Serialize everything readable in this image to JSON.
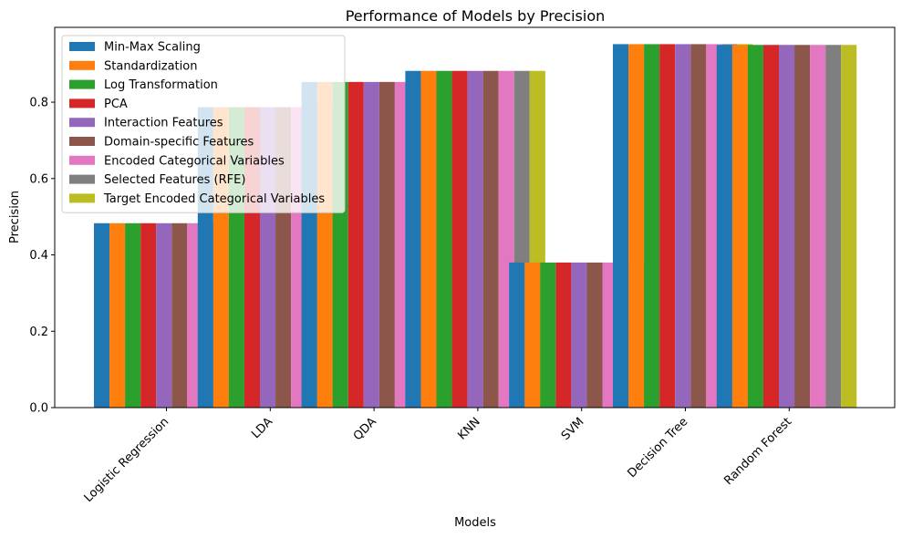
{
  "chart_data": {
    "type": "bar",
    "title": "Performance of Models by Precision",
    "xlabel": "Models",
    "ylabel": "Precision",
    "ylim": [
      0,
      0.996
    ],
    "yticks": [
      0.0,
      0.2,
      0.4,
      0.6,
      0.8
    ],
    "ytick_labels": [
      "0.0",
      "0.2",
      "0.4",
      "0.6",
      "0.8"
    ],
    "categories": [
      "Logistic Regression",
      "LDA",
      "QDA",
      "KNN",
      "SVM",
      "Decision Tree",
      "Random Forest"
    ],
    "legend_position": "upper-left",
    "grid": false,
    "series": [
      {
        "name": "Min-Max Scaling",
        "color": "#1f77b4",
        "values": [
          0.483,
          0.787,
          0.853,
          0.882,
          0.38,
          0.952,
          0.95
        ]
      },
      {
        "name": "Standardization",
        "color": "#ff7f0e",
        "values": [
          0.483,
          0.787,
          0.853,
          0.882,
          0.38,
          0.952,
          0.95
        ]
      },
      {
        "name": "Log Transformation",
        "color": "#2ca02c",
        "values": [
          0.483,
          0.787,
          0.853,
          0.882,
          0.38,
          0.952,
          0.95
        ]
      },
      {
        "name": "PCA",
        "color": "#d62728",
        "values": [
          0.483,
          0.787,
          0.853,
          0.882,
          0.38,
          0.952,
          0.95
        ]
      },
      {
        "name": "Interaction Features",
        "color": "#9467bd",
        "values": [
          0.483,
          0.787,
          0.853,
          0.882,
          0.38,
          0.952,
          0.95
        ]
      },
      {
        "name": "Domain-specific Features",
        "color": "#8c564b",
        "values": [
          0.483,
          0.787,
          0.853,
          0.882,
          0.38,
          0.952,
          0.95
        ]
      },
      {
        "name": "Encoded Categorical Variables",
        "color": "#e377c2",
        "values": [
          0.483,
          0.787,
          0.853,
          0.882,
          0.38,
          0.952,
          0.95
        ]
      },
      {
        "name": "Selected Features (RFE)",
        "color": "#7f7f7f",
        "values": [
          0.483,
          0.787,
          0.853,
          0.882,
          0.38,
          0.952,
          0.95
        ]
      },
      {
        "name": "Target Encoded Categorical Variables",
        "color": "#bcbd22",
        "values": [
          0.483,
          0.787,
          0.853,
          0.882,
          0.38,
          0.952,
          0.95
        ]
      }
    ]
  }
}
